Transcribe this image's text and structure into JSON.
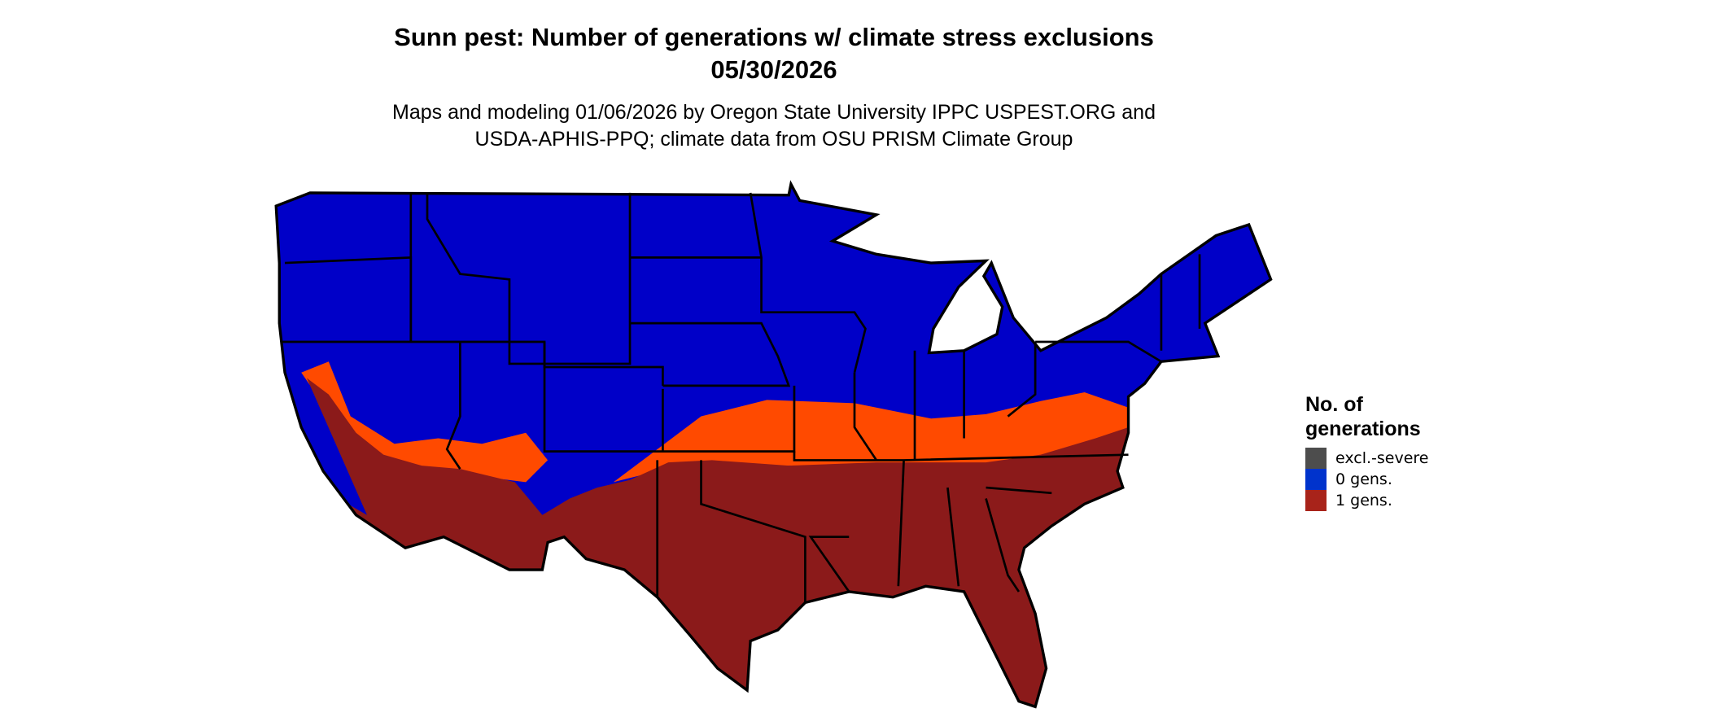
{
  "title": {
    "line1": "Sunn pest: Number of generations w/ climate stress exclusions",
    "line2": "05/30/2026"
  },
  "subtitle": {
    "line1": "Maps and modeling 01/06/2026 by Oregon State University IPPC USPEST.ORG and",
    "line2": "USDA-APHIS-PPQ; climate data from OSU PRISM Climate Group"
  },
  "legend": {
    "title_line1": "No. of",
    "title_line2": "generations",
    "items": [
      {
        "label": "excl.-severe",
        "color": "#4d4d4d"
      },
      {
        "label": "0 gens.",
        "color": "#0033cc"
      },
      {
        "label": "1 gens.",
        "color": "#a8231a"
      }
    ]
  },
  "map_colors": {
    "zero_gens": "#0000c8",
    "one_gen": "#8b1a1a",
    "partial": "#ff4a00",
    "borders": "#000000"
  }
}
